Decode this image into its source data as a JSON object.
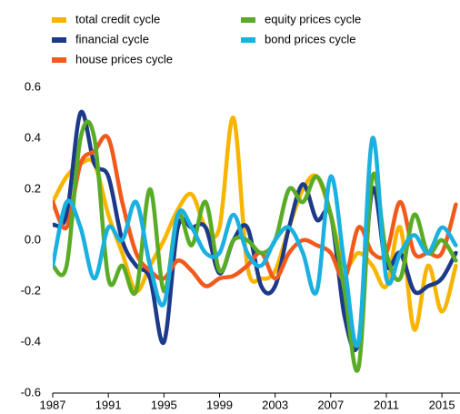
{
  "chart_data": {
    "type": "line",
    "x": [
      1987,
      1988,
      1989,
      1990,
      1991,
      1992,
      1993,
      1994,
      1995,
      1996,
      1997,
      1998,
      1999,
      2000,
      2001,
      2002,
      2003,
      2004,
      2005,
      2006,
      2007,
      2008,
      2009,
      2010,
      2011,
      2012,
      2013,
      2014,
      2015,
      2016
    ],
    "series": [
      {
        "name": "total credit cycle",
        "color": "#f7b500",
        "values": [
          0.15,
          0.25,
          0.3,
          0.3,
          0.1,
          -0.05,
          -0.2,
          -0.1,
          0.0,
          0.12,
          0.18,
          0.05,
          0.05,
          0.48,
          -0.1,
          -0.15,
          -0.12,
          0.05,
          0.2,
          0.25,
          0.1,
          -0.1,
          -0.05,
          -0.1,
          -0.18,
          0.05,
          -0.35,
          -0.1,
          -0.28,
          -0.1
        ]
      },
      {
        "name": "financial cycle",
        "color": "#1d3a8a",
        "values": [
          0.06,
          0.1,
          0.5,
          0.3,
          0.25,
          0.0,
          -0.1,
          -0.15,
          -0.4,
          0.05,
          0.05,
          0.05,
          -0.13,
          0.0,
          0.05,
          -0.18,
          -0.18,
          0.05,
          0.22,
          0.08,
          0.1,
          -0.3,
          -0.4,
          0.2,
          -0.1,
          -0.05,
          -0.2,
          -0.18,
          -0.15,
          -0.05
        ]
      },
      {
        "name": "house prices cycle",
        "color": "#f25a1b",
        "values": [
          0.15,
          0.05,
          0.3,
          0.35,
          0.4,
          0.15,
          -0.05,
          -0.12,
          -0.15,
          -0.08,
          -0.12,
          -0.18,
          -0.15,
          -0.14,
          -0.1,
          -0.05,
          -0.15,
          -0.05,
          0.0,
          -0.02,
          -0.05,
          -0.15,
          0.05,
          -0.05,
          -0.05,
          0.15,
          -0.05,
          -0.05,
          -0.05,
          0.14
        ]
      },
      {
        "name": "equity prices cycle",
        "color": "#5aac26",
        "values": [
          -0.1,
          -0.1,
          0.4,
          0.4,
          -0.15,
          -0.1,
          -0.2,
          0.2,
          -0.2,
          0.1,
          -0.02,
          0.15,
          -0.12,
          0.0,
          0.0,
          -0.05,
          0.0,
          0.2,
          0.15,
          0.25,
          0.1,
          -0.2,
          -0.5,
          0.25,
          -0.05,
          -0.15,
          0.1,
          -0.05,
          0.0,
          -0.08
        ]
      },
      {
        "name": "bond prices cycle",
        "color": "#1ab0e0",
        "values": [
          -0.1,
          0.15,
          0.05,
          -0.15,
          0.05,
          0.0,
          0.15,
          -0.1,
          -0.25,
          0.1,
          0.05,
          -0.05,
          -0.05,
          0.1,
          -0.05,
          -0.1,
          0.0,
          0.05,
          -0.05,
          -0.2,
          0.25,
          -0.1,
          -0.4,
          0.4,
          -0.15,
          -0.05,
          0.02,
          -0.05,
          0.05,
          -0.02
        ]
      }
    ],
    "xlim": [
      1987,
      2016.3
    ],
    "xticks": [
      1987,
      1991,
      1995,
      1999,
      2003,
      2007,
      2011,
      2015
    ],
    "ylim": [
      -0.6,
      0.6
    ],
    "yticks": [
      -0.6,
      -0.4,
      -0.2,
      {
        "value": 0,
        "label": "0.0"
      },
      0.2,
      0.4,
      0.6
    ],
    "grid": false
  }
}
